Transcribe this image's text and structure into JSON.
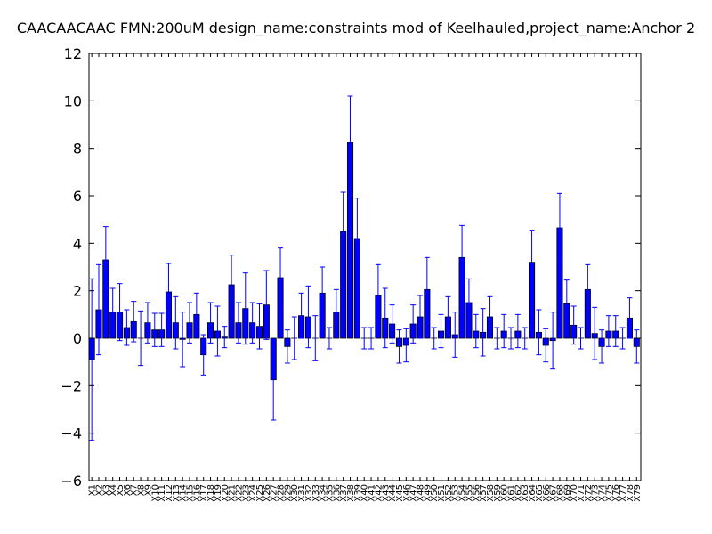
{
  "chart_data": {
    "type": "bar",
    "title": "CAACAACAAC  FMN:200uM  design_name:constraints mod of Keelhauled,project_name:Anchor 2",
    "xlabel": "",
    "ylabel": "",
    "ylim": [
      -6,
      12
    ],
    "yticks": [
      -6,
      -4,
      -2,
      0,
      2,
      4,
      6,
      8,
      10,
      12
    ],
    "grid": false,
    "legend": "none",
    "bar_color": "#0000ff",
    "error_color": "#0000ff",
    "categories": [
      "X1",
      "X2",
      "X3",
      "X4",
      "X5",
      "X6",
      "X7",
      "X8",
      "X9",
      "X10",
      "X11",
      "X12",
      "X13",
      "X14",
      "X15",
      "X16",
      "X17",
      "X18",
      "X19",
      "X20",
      "X21",
      "X22",
      "X23",
      "X24",
      "X25",
      "X26",
      "X27",
      "X28",
      "X29",
      "X30",
      "X31",
      "X32",
      "X33",
      "X34",
      "X35",
      "X36",
      "X37",
      "X38",
      "X39",
      "X40",
      "X41",
      "X42",
      "X43",
      "X44",
      "X45",
      "X46",
      "X47",
      "X48",
      "X49",
      "X50",
      "X51",
      "X52",
      "X53",
      "X54",
      "X55",
      "X56",
      "X57",
      "X58",
      "X59",
      "X60",
      "X61",
      "X62",
      "X63",
      "X64",
      "X65",
      "X66",
      "X67",
      "X68",
      "X69",
      "X70",
      "X71",
      "X72",
      "X73",
      "X74",
      "X75",
      "X76",
      "X77",
      "X78",
      "X79"
    ],
    "values": [
      -0.9,
      1.2,
      3.3,
      1.1,
      1.1,
      0.45,
      0.7,
      0.0,
      0.65,
      0.35,
      0.35,
      1.95,
      0.65,
      -0.05,
      0.65,
      1.0,
      -0.7,
      0.65,
      0.3,
      0.05,
      2.25,
      0.65,
      1.25,
      0.65,
      0.5,
      1.4,
      -1.75,
      2.55,
      -0.35,
      0.0,
      0.95,
      0.9,
      0.0,
      1.9,
      0.0,
      1.1,
      4.5,
      8.25,
      4.2,
      0.0,
      0.0,
      1.8,
      0.85,
      0.6,
      -0.35,
      -0.3,
      0.6,
      0.9,
      2.05,
      0.0,
      0.3,
      0.9,
      0.15,
      3.4,
      1.5,
      0.3,
      0.25,
      0.9,
      0.0,
      0.3,
      0.0,
      0.3,
      0.0,
      3.2,
      0.25,
      -0.3,
      -0.1,
      4.65,
      1.45,
      0.55,
      0.0,
      2.05,
      0.2,
      -0.35,
      0.3,
      0.3,
      0.0,
      0.85,
      -0.35
    ],
    "errors": [
      3.4,
      1.9,
      1.4,
      1.0,
      1.2,
      0.75,
      0.85,
      1.15,
      0.85,
      0.7,
      0.7,
      1.2,
      1.1,
      1.15,
      0.85,
      0.9,
      0.85,
      0.85,
      1.05,
      0.45,
      1.25,
      0.85,
      1.5,
      0.85,
      0.95,
      1.45,
      1.7,
      1.25,
      0.7,
      0.9,
      0.95,
      1.3,
      0.95,
      1.1,
      0.45,
      0.95,
      1.65,
      1.95,
      1.7,
      0.45,
      0.45,
      1.3,
      1.25,
      0.8,
      0.7,
      0.7,
      0.8,
      0.9,
      1.35,
      0.45,
      0.7,
      0.85,
      0.95,
      1.35,
      1.0,
      0.7,
      1.0,
      0.85,
      0.45,
      0.7,
      0.45,
      0.7,
      0.45,
      1.35,
      0.95,
      0.7,
      1.2,
      1.45,
      1.0,
      0.8,
      0.45,
      1.05,
      1.1,
      0.7,
      0.65,
      0.65,
      0.45,
      0.85,
      0.7
    ]
  }
}
